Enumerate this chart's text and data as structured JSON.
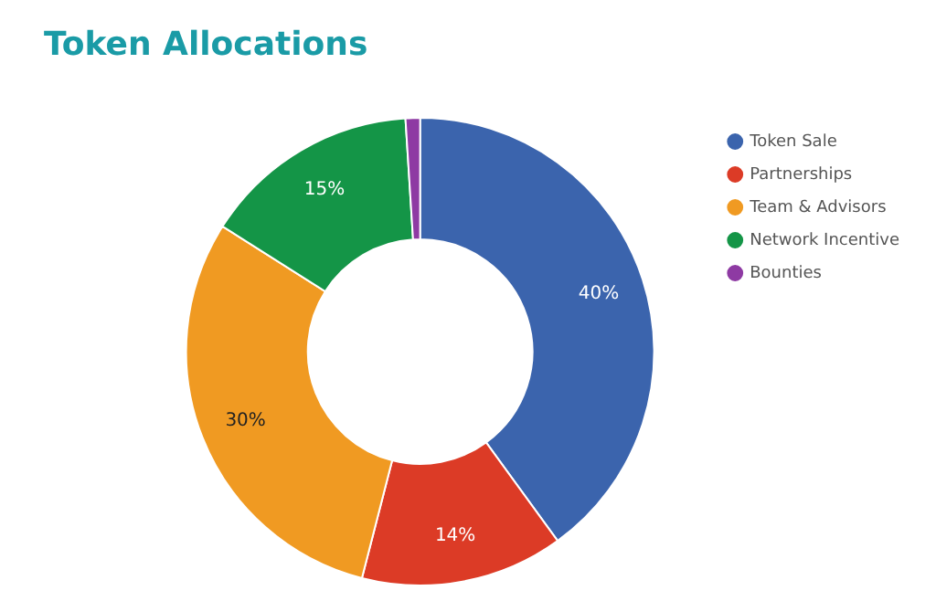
{
  "chart_data": {
    "type": "donut",
    "title": "Token Allocations",
    "categories": [
      "Token Sale",
      "Partnerships",
      "Team & Advisors",
      "Network Incentive",
      "Bounties"
    ],
    "values": [
      40,
      14,
      30,
      15,
      1
    ],
    "colors": [
      "#3b64ad",
      "#dc3b26",
      "#f09a22",
      "#149547",
      "#8e3aa3"
    ],
    "value_labels": [
      "40%",
      "14%",
      "30%",
      "15%",
      null
    ],
    "legend": "right"
  }
}
